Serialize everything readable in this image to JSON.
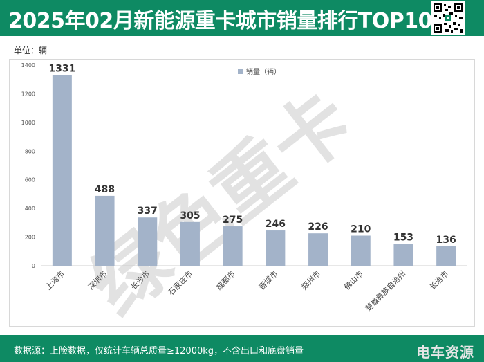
{
  "header": {
    "title": "2025年02月新能源重卡城市销量排行TOP10"
  },
  "unit_label": "单位：辆",
  "watermark": "绿色重卡",
  "footer": {
    "source": "数据源：上险数据，仅统计车辆总质量≥12000kg，不含出口和底盘销量",
    "logo": "电车资源"
  },
  "colors": {
    "brand": "#0e8a63",
    "bar": "#a3b3c9"
  },
  "chart_data": {
    "type": "bar",
    "title": "",
    "xlabel": "",
    "ylabel": "",
    "categories": [
      "上海市",
      "深圳市",
      "长沙市",
      "石家庄市",
      "成都市",
      "晋城市",
      "郑州市",
      "佛山市",
      "楚雄彝族自治州",
      "长治市"
    ],
    "series": [
      {
        "name": "销量（辆）",
        "values": [
          1331,
          488,
          337,
          305,
          275,
          246,
          226,
          210,
          153,
          136
        ]
      }
    ],
    "ylim": [
      0,
      1400
    ],
    "yticks": [
      0,
      200,
      400,
      600,
      800,
      1000,
      1200,
      1400
    ],
    "data_labels": true,
    "grid": false,
    "legend": "top-center"
  }
}
